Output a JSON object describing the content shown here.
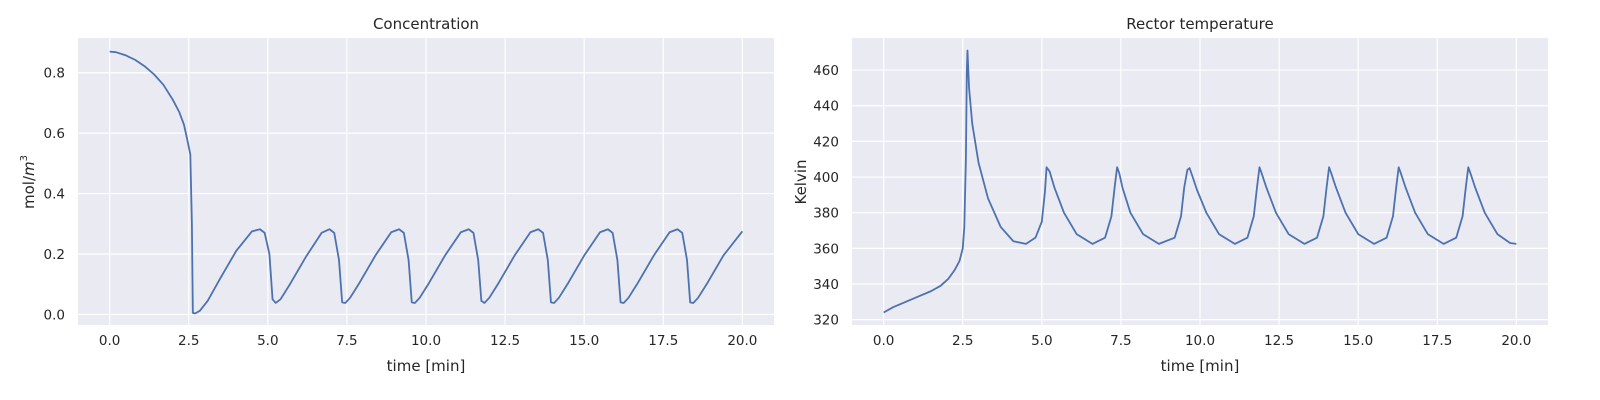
{
  "colors": {
    "background": "#eaeaf2",
    "grid": "#ffffff",
    "line": "#4c72b0",
    "text": "#262626"
  },
  "chart_data": [
    {
      "type": "line",
      "title": "Concentration",
      "xlabel": "time [min]",
      "ylabel": "mol/m³",
      "ylabel_base": "mol/",
      "ylabel_var": "m",
      "ylabel_exp": "3",
      "xlim": [
        -1.0,
        21.0
      ],
      "ylim": [
        -0.035,
        0.915
      ],
      "xticks": [
        0.0,
        2.5,
        5.0,
        7.5,
        10.0,
        12.5,
        15.0,
        17.5,
        20.0
      ],
      "xtick_labels": [
        "0.0",
        "2.5",
        "5.0",
        "7.5",
        "10.0",
        "12.5",
        "15.0",
        "17.5",
        "20.0"
      ],
      "yticks": [
        0.0,
        0.2,
        0.4,
        0.6,
        0.8
      ],
      "ytick_labels": [
        "0.0",
        "0.2",
        "0.4",
        "0.6",
        "0.8"
      ],
      "grid": true,
      "series": [
        {
          "x": [
            0.0,
            0.2,
            0.5,
            0.8,
            1.1,
            1.4,
            1.7,
            2.0,
            2.2,
            2.35,
            2.45,
            2.55,
            2.6,
            2.63,
            2.7,
            2.85,
            3.1,
            3.5,
            4.0,
            4.5,
            4.75,
            4.9,
            5.05,
            5.15,
            5.25,
            5.4,
            5.7,
            6.2,
            6.7,
            6.95,
            7.1,
            7.25,
            7.35,
            7.45,
            7.6,
            7.9,
            8.4,
            8.9,
            9.15,
            9.3,
            9.45,
            9.55,
            9.65,
            9.8,
            10.1,
            10.6,
            11.1,
            11.35,
            11.5,
            11.65,
            11.75,
            11.85,
            12.0,
            12.3,
            12.8,
            13.3,
            13.55,
            13.7,
            13.85,
            13.95,
            14.05,
            14.2,
            14.5,
            15.0,
            15.5,
            15.75,
            15.9,
            16.05,
            16.15,
            16.25,
            16.4,
            16.7,
            17.2,
            17.7,
            17.95,
            18.1,
            18.25,
            18.35,
            18.45,
            18.6,
            18.9,
            19.4,
            20.0
          ],
          "y": [
            0.87,
            0.868,
            0.858,
            0.843,
            0.822,
            0.795,
            0.76,
            0.71,
            0.67,
            0.628,
            0.58,
            0.53,
            0.3,
            0.005,
            0.003,
            0.012,
            0.045,
            0.12,
            0.21,
            0.275,
            0.282,
            0.27,
            0.2,
            0.05,
            0.038,
            0.05,
            0.1,
            0.19,
            0.27,
            0.282,
            0.27,
            0.18,
            0.04,
            0.038,
            0.055,
            0.105,
            0.195,
            0.272,
            0.282,
            0.27,
            0.18,
            0.04,
            0.038,
            0.055,
            0.105,
            0.195,
            0.272,
            0.282,
            0.27,
            0.18,
            0.045,
            0.038,
            0.055,
            0.105,
            0.195,
            0.272,
            0.282,
            0.27,
            0.18,
            0.04,
            0.038,
            0.055,
            0.105,
            0.195,
            0.272,
            0.282,
            0.27,
            0.18,
            0.04,
            0.038,
            0.055,
            0.105,
            0.195,
            0.272,
            0.282,
            0.27,
            0.18,
            0.04,
            0.038,
            0.055,
            0.105,
            0.195,
            0.275
          ]
        }
      ]
    },
    {
      "type": "line",
      "title": "Rector temperature",
      "xlabel": "time [min]",
      "ylabel": "Kelvin",
      "xlim": [
        -1.0,
        21.0
      ],
      "ylim": [
        317.0,
        478.0
      ],
      "xticks": [
        0.0,
        2.5,
        5.0,
        7.5,
        10.0,
        12.5,
        15.0,
        17.5,
        20.0
      ],
      "xtick_labels": [
        "0.0",
        "2.5",
        "5.0",
        "7.5",
        "10.0",
        "12.5",
        "15.0",
        "17.5",
        "20.0"
      ],
      "yticks": [
        320,
        340,
        360,
        380,
        400,
        420,
        440,
        460
      ],
      "ytick_labels": [
        "320",
        "340",
        "360",
        "380",
        "400",
        "420",
        "440",
        "460"
      ],
      "grid": true,
      "series": [
        {
          "x": [
            0.0,
            0.3,
            0.7,
            1.1,
            1.5,
            1.8,
            2.05,
            2.25,
            2.4,
            2.5,
            2.55,
            2.6,
            2.63,
            2.65,
            2.7,
            2.8,
            3.0,
            3.3,
            3.7,
            4.1,
            4.5,
            4.8,
            5.0,
            5.1,
            5.15,
            5.25,
            5.4,
            5.7,
            6.1,
            6.6,
            7.0,
            7.2,
            7.3,
            7.38,
            7.45,
            7.55,
            7.8,
            8.2,
            8.7,
            9.2,
            9.4,
            9.5,
            9.6,
            9.67,
            9.75,
            9.9,
            10.2,
            10.6,
            11.1,
            11.5,
            11.7,
            11.8,
            11.88,
            11.95,
            12.1,
            12.4,
            12.8,
            13.3,
            13.7,
            13.9,
            14.0,
            14.08,
            14.15,
            14.3,
            14.6,
            15.0,
            15.5,
            15.9,
            16.1,
            16.2,
            16.28,
            16.35,
            16.5,
            16.8,
            17.2,
            17.7,
            18.1,
            18.3,
            18.4,
            18.48,
            18.55,
            18.7,
            19.0,
            19.4,
            19.8,
            20.0
          ],
          "y": [
            324.0,
            327.0,
            330.0,
            333.0,
            336.0,
            339.0,
            343.0,
            348.0,
            353.0,
            360.0,
            372.0,
            410.0,
            460.0,
            471.0,
            450.0,
            430.0,
            408.0,
            388.0,
            372.0,
            364.0,
            362.5,
            366.0,
            375.0,
            392.0,
            405.5,
            403.0,
            394.0,
            380.0,
            368.0,
            362.5,
            366.0,
            378.0,
            394.0,
            405.5,
            402.0,
            394.0,
            380.0,
            368.0,
            362.5,
            366.0,
            378.0,
            394.0,
            404.0,
            405.0,
            401.0,
            393.0,
            380.0,
            368.0,
            362.5,
            366.0,
            378.0,
            394.0,
            405.5,
            402.0,
            394.0,
            380.0,
            368.0,
            362.5,
            366.0,
            378.0,
            394.0,
            405.5,
            402.0,
            394.0,
            380.0,
            368.0,
            362.5,
            366.0,
            378.0,
            394.0,
            405.5,
            402.0,
            394.0,
            380.0,
            368.0,
            362.5,
            366.0,
            378.0,
            394.0,
            405.5,
            402.0,
            394.0,
            380.0,
            368.0,
            363.0,
            362.5
          ]
        }
      ]
    }
  ]
}
